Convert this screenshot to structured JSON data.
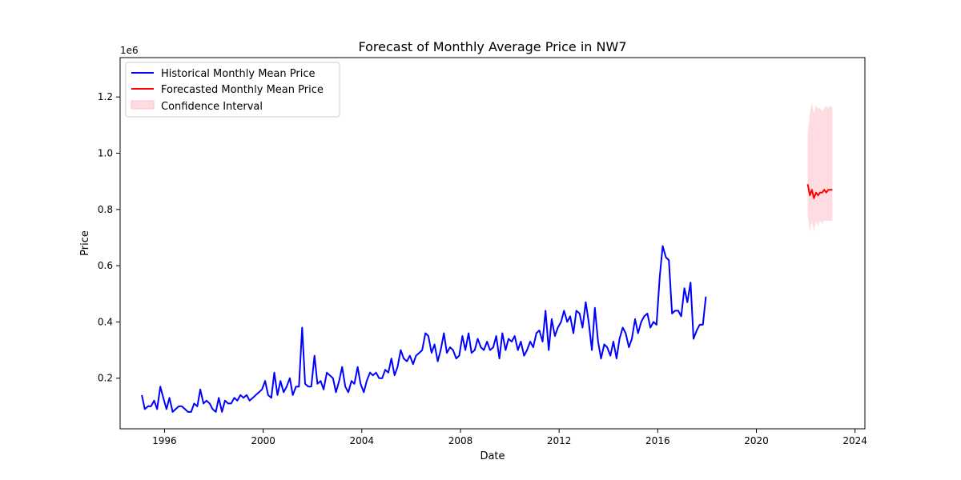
{
  "chart_data": {
    "type": "line",
    "title": "Forecast of Monthly Average Price in NW7",
    "xlabel": "Date",
    "ylabel": "Price",
    "y_multiplier_label": "1e6",
    "xlim": [
      1994.2,
      2024.4
    ],
    "ylim": [
      0.02,
      1.34
    ],
    "x_ticks": [
      1996,
      2000,
      2004,
      2008,
      2012,
      2016,
      2020,
      2024
    ],
    "y_ticks": [
      0.2,
      0.4,
      0.6,
      0.8,
      1.0,
      1.2
    ],
    "y_tick_labels": [
      "0.2",
      "0.4",
      "0.6",
      "0.8",
      "1.0",
      "1.2"
    ],
    "legend_position": "top-left",
    "grid": false,
    "series": [
      {
        "name": "Historical Monthly Mean Price",
        "color": "#0000ff",
        "kind": "line",
        "points": [
          [
            1995.08,
            0.14
          ],
          [
            1995.2,
            0.09
          ],
          [
            1995.33,
            0.1
          ],
          [
            1995.45,
            0.1
          ],
          [
            1995.58,
            0.12
          ],
          [
            1995.7,
            0.09
          ],
          [
            1995.83,
            0.17
          ],
          [
            1995.95,
            0.13
          ],
          [
            1996.08,
            0.09
          ],
          [
            1996.2,
            0.13
          ],
          [
            1996.33,
            0.08
          ],
          [
            1996.45,
            0.09
          ],
          [
            1996.58,
            0.1
          ],
          [
            1996.7,
            0.1
          ],
          [
            1996.83,
            0.09
          ],
          [
            1996.95,
            0.08
          ],
          [
            1997.08,
            0.08
          ],
          [
            1997.2,
            0.11
          ],
          [
            1997.33,
            0.1
          ],
          [
            1997.45,
            0.16
          ],
          [
            1997.58,
            0.11
          ],
          [
            1997.7,
            0.12
          ],
          [
            1997.83,
            0.11
          ],
          [
            1997.95,
            0.09
          ],
          [
            1998.08,
            0.08
          ],
          [
            1998.2,
            0.13
          ],
          [
            1998.33,
            0.08
          ],
          [
            1998.45,
            0.12
          ],
          [
            1998.58,
            0.11
          ],
          [
            1998.7,
            0.11
          ],
          [
            1998.83,
            0.13
          ],
          [
            1998.95,
            0.12
          ],
          [
            1999.08,
            0.14
          ],
          [
            1999.2,
            0.13
          ],
          [
            1999.33,
            0.14
          ],
          [
            1999.45,
            0.12
          ],
          [
            1999.58,
            0.13
          ],
          [
            1999.7,
            0.14
          ],
          [
            1999.83,
            0.15
          ],
          [
            1999.95,
            0.16
          ],
          [
            2000.08,
            0.19
          ],
          [
            2000.2,
            0.14
          ],
          [
            2000.33,
            0.13
          ],
          [
            2000.45,
            0.22
          ],
          [
            2000.58,
            0.14
          ],
          [
            2000.7,
            0.19
          ],
          [
            2000.83,
            0.15
          ],
          [
            2000.95,
            0.17
          ],
          [
            2001.08,
            0.2
          ],
          [
            2001.2,
            0.14
          ],
          [
            2001.33,
            0.17
          ],
          [
            2001.45,
            0.17
          ],
          [
            2001.58,
            0.38
          ],
          [
            2001.7,
            0.18
          ],
          [
            2001.83,
            0.17
          ],
          [
            2001.95,
            0.17
          ],
          [
            2002.08,
            0.28
          ],
          [
            2002.2,
            0.18
          ],
          [
            2002.33,
            0.19
          ],
          [
            2002.45,
            0.16
          ],
          [
            2002.58,
            0.22
          ],
          [
            2002.7,
            0.21
          ],
          [
            2002.83,
            0.2
          ],
          [
            2002.95,
            0.15
          ],
          [
            2003.08,
            0.19
          ],
          [
            2003.2,
            0.24
          ],
          [
            2003.33,
            0.17
          ],
          [
            2003.45,
            0.15
          ],
          [
            2003.58,
            0.19
          ],
          [
            2003.7,
            0.18
          ],
          [
            2003.83,
            0.24
          ],
          [
            2003.95,
            0.18
          ],
          [
            2004.08,
            0.15
          ],
          [
            2004.2,
            0.19
          ],
          [
            2004.33,
            0.22
          ],
          [
            2004.45,
            0.21
          ],
          [
            2004.58,
            0.22
          ],
          [
            2004.7,
            0.2
          ],
          [
            2004.83,
            0.2
          ],
          [
            2004.95,
            0.23
          ],
          [
            2005.08,
            0.22
          ],
          [
            2005.2,
            0.27
          ],
          [
            2005.33,
            0.21
          ],
          [
            2005.45,
            0.24
          ],
          [
            2005.58,
            0.3
          ],
          [
            2005.7,
            0.27
          ],
          [
            2005.83,
            0.26
          ],
          [
            2005.95,
            0.28
          ],
          [
            2006.08,
            0.25
          ],
          [
            2006.2,
            0.28
          ],
          [
            2006.33,
            0.29
          ],
          [
            2006.45,
            0.3
          ],
          [
            2006.58,
            0.36
          ],
          [
            2006.7,
            0.35
          ],
          [
            2006.83,
            0.29
          ],
          [
            2006.95,
            0.32
          ],
          [
            2007.08,
            0.26
          ],
          [
            2007.2,
            0.3
          ],
          [
            2007.33,
            0.36
          ],
          [
            2007.45,
            0.29
          ],
          [
            2007.58,
            0.31
          ],
          [
            2007.7,
            0.3
          ],
          [
            2007.83,
            0.27
          ],
          [
            2007.95,
            0.28
          ],
          [
            2008.08,
            0.35
          ],
          [
            2008.2,
            0.3
          ],
          [
            2008.33,
            0.36
          ],
          [
            2008.45,
            0.29
          ],
          [
            2008.58,
            0.3
          ],
          [
            2008.7,
            0.34
          ],
          [
            2008.83,
            0.31
          ],
          [
            2008.95,
            0.3
          ],
          [
            2009.08,
            0.33
          ],
          [
            2009.2,
            0.3
          ],
          [
            2009.33,
            0.31
          ],
          [
            2009.45,
            0.35
          ],
          [
            2009.58,
            0.27
          ],
          [
            2009.7,
            0.36
          ],
          [
            2009.83,
            0.3
          ],
          [
            2009.95,
            0.34
          ],
          [
            2010.08,
            0.33
          ],
          [
            2010.2,
            0.35
          ],
          [
            2010.33,
            0.3
          ],
          [
            2010.45,
            0.33
          ],
          [
            2010.58,
            0.28
          ],
          [
            2010.7,
            0.3
          ],
          [
            2010.83,
            0.33
          ],
          [
            2010.95,
            0.31
          ],
          [
            2011.08,
            0.36
          ],
          [
            2011.2,
            0.37
          ],
          [
            2011.33,
            0.33
          ],
          [
            2011.45,
            0.44
          ],
          [
            2011.58,
            0.3
          ],
          [
            2011.7,
            0.41
          ],
          [
            2011.83,
            0.35
          ],
          [
            2011.95,
            0.38
          ],
          [
            2012.08,
            0.4
          ],
          [
            2012.2,
            0.44
          ],
          [
            2012.33,
            0.4
          ],
          [
            2012.45,
            0.42
          ],
          [
            2012.58,
            0.36
          ],
          [
            2012.7,
            0.44
          ],
          [
            2012.83,
            0.43
          ],
          [
            2012.95,
            0.38
          ],
          [
            2013.08,
            0.47
          ],
          [
            2013.2,
            0.4
          ],
          [
            2013.33,
            0.3
          ],
          [
            2013.45,
            0.45
          ],
          [
            2013.58,
            0.33
          ],
          [
            2013.7,
            0.27
          ],
          [
            2013.83,
            0.32
          ],
          [
            2013.95,
            0.31
          ],
          [
            2014.08,
            0.28
          ],
          [
            2014.2,
            0.33
          ],
          [
            2014.33,
            0.27
          ],
          [
            2014.45,
            0.34
          ],
          [
            2014.58,
            0.38
          ],
          [
            2014.7,
            0.36
          ],
          [
            2014.83,
            0.31
          ],
          [
            2014.95,
            0.34
          ],
          [
            2015.08,
            0.41
          ],
          [
            2015.2,
            0.36
          ],
          [
            2015.33,
            0.4
          ],
          [
            2015.45,
            0.42
          ],
          [
            2015.58,
            0.43
          ],
          [
            2015.7,
            0.38
          ],
          [
            2015.83,
            0.4
          ],
          [
            2015.95,
            0.39
          ],
          [
            2016.08,
            0.56
          ],
          [
            2016.2,
            0.67
          ],
          [
            2016.33,
            0.63
          ],
          [
            2016.45,
            0.62
          ],
          [
            2016.58,
            0.43
          ],
          [
            2016.7,
            0.44
          ],
          [
            2016.83,
            0.44
          ],
          [
            2016.95,
            0.42
          ],
          [
            2017.08,
            0.52
          ],
          [
            2017.2,
            0.47
          ],
          [
            2017.33,
            0.54
          ],
          [
            2017.45,
            0.34
          ],
          [
            2017.58,
            0.37
          ],
          [
            2017.7,
            0.39
          ],
          [
            2017.83,
            0.39
          ],
          [
            2017.95,
            0.49
          ]
        ]
      },
      {
        "name": "Forecasted Monthly Mean Price",
        "color": "#ff0000",
        "kind": "line",
        "points": [
          [
            2022.08,
            0.89
          ],
          [
            2022.17,
            0.85
          ],
          [
            2022.25,
            0.87
          ],
          [
            2022.33,
            0.84
          ],
          [
            2022.42,
            0.86
          ],
          [
            2022.5,
            0.85
          ],
          [
            2022.58,
            0.86
          ],
          [
            2022.67,
            0.86
          ],
          [
            2022.75,
            0.87
          ],
          [
            2022.83,
            0.86
          ],
          [
            2022.92,
            0.87
          ],
          [
            2023.0,
            0.87
          ],
          [
            2023.08,
            0.87
          ]
        ]
      },
      {
        "name": "Confidence Interval",
        "color": "#ffc0cb",
        "kind": "band",
        "x": [
          2022.08,
          2022.17,
          2022.25,
          2022.33,
          2022.42,
          2022.5,
          2022.58,
          2022.67,
          2022.75,
          2022.83,
          2022.92,
          2023.0,
          2023.08
        ],
        "lower": [
          0.78,
          0.72,
          0.76,
          0.72,
          0.76,
          0.74,
          0.76,
          0.75,
          0.76,
          0.76,
          0.76,
          0.76,
          0.76
        ],
        "upper": [
          1.07,
          1.14,
          1.18,
          1.14,
          1.17,
          1.16,
          1.16,
          1.15,
          1.16,
          1.17,
          1.16,
          1.17,
          1.16
        ]
      }
    ]
  }
}
